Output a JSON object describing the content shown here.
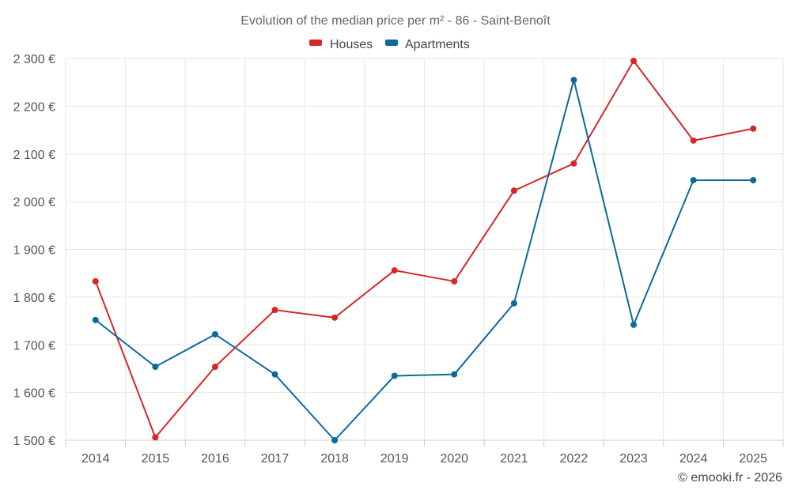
{
  "chart_data": {
    "type": "line",
    "title": "Evolution of the median price per m² - 86 - Saint-Benoît",
    "categories": [
      "2014",
      "2015",
      "2016",
      "2017",
      "2018",
      "2019",
      "2020",
      "2021",
      "2022",
      "2023",
      "2024",
      "2025"
    ],
    "y_ticks": [
      "1 500 €",
      "1 600 €",
      "1 700 €",
      "1 800 €",
      "1 900 €",
      "2 000 €",
      "2 100 €",
      "2 200 €",
      "2 300 €"
    ],
    "ylim": [
      1500,
      2300
    ],
    "series": [
      {
        "name": "Houses",
        "color": "#d62728",
        "values": [
          1833,
          1506,
          1654,
          1773,
          1757,
          1856,
          1833,
          2023,
          2080,
          2295,
          2128,
          2153
        ]
      },
      {
        "name": "Apartments",
        "color": "#0b6a9a",
        "values": [
          1752,
          1654,
          1722,
          1638,
          1500,
          1635,
          1638,
          1787,
          2255,
          1742,
          2045,
          2045
        ]
      }
    ],
    "legend_position": "top-center",
    "grid": true
  },
  "credit": "© emooki.fr - 2026"
}
